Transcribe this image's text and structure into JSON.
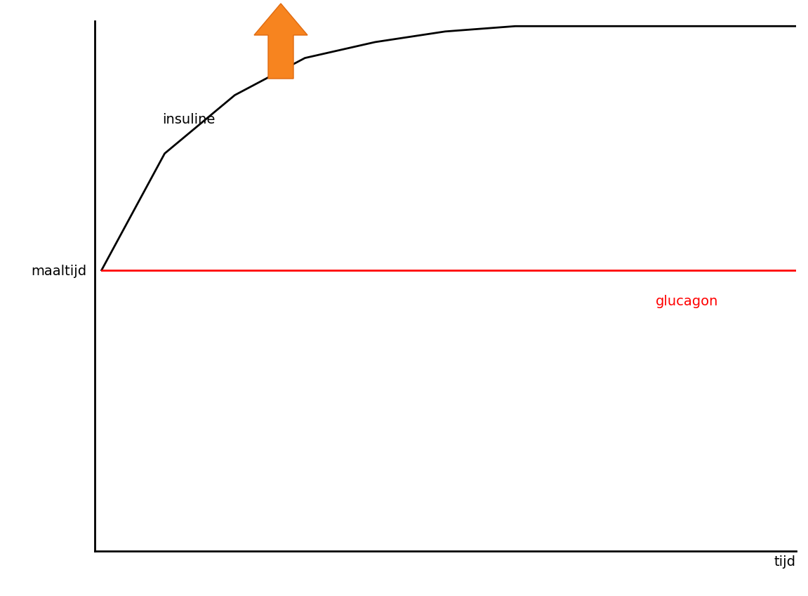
{
  "chart_data": {
    "type": "line",
    "xlabel": "tijd",
    "x": [
      1,
      10,
      20,
      30,
      40,
      50,
      60,
      70,
      80,
      90,
      100
    ],
    "xlim": [
      0,
      100
    ],
    "xticks": [],
    "ylim": [
      0,
      100
    ],
    "yticks": [
      {
        "value": 53,
        "label": "maaltijd"
      }
    ],
    "tick_labels": "y",
    "series": [
      {
        "name": "insuline",
        "color": "#000000",
        "values": [
          53,
          75,
          86,
          93,
          96,
          98,
          99,
          99,
          99,
          99,
          99
        ]
      },
      {
        "name": "glucagon",
        "color": "#ff0000",
        "values": [
          53,
          53,
          53,
          53,
          53,
          53,
          53,
          53,
          53,
          53,
          53
        ]
      }
    ]
  }
}
